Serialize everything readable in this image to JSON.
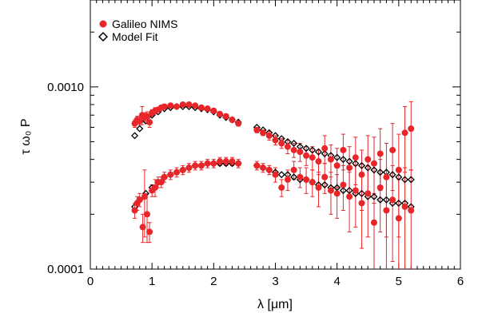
{
  "chart_data": {
    "type": "scatter",
    "title": "",
    "xlabel": "λ [μm]",
    "ylabel": "τ ω₀ P",
    "xlim": [
      0,
      6
    ],
    "ylim": [
      0.0001,
      0.003
    ],
    "yscale": "log",
    "x_ticks": [
      0,
      1,
      2,
      3,
      4,
      5,
      6
    ],
    "x_tick_labels": [
      "0",
      "1",
      "2",
      "3",
      "4",
      "5",
      "6"
    ],
    "y_ticks": [
      0.0001,
      0.001
    ],
    "y_tick_labels": [
      "0.0001",
      "0.0010"
    ],
    "legend_position": "top-left",
    "grid": false,
    "colors": {
      "observed": "#e8262a",
      "model": "#000000"
    },
    "series": [
      {
        "name": "Galileo NIMS",
        "marker": "filled-circle",
        "components": [
          {
            "x": [
              0.72,
              0.76,
              0.8,
              0.84,
              0.88,
              0.92,
              0.96,
              1.0,
              1.05,
              1.1,
              1.15,
              1.2,
              1.3,
              1.4,
              1.5,
              1.6,
              1.7,
              1.8,
              1.9,
              2.0,
              2.1,
              2.2,
              2.3,
              2.4
            ],
            "y": [
              0.00063,
              0.00066,
              0.00065,
              0.0007,
              0.00068,
              0.00069,
              0.00064,
              0.00072,
              0.00074,
              0.00075,
              0.00077,
              0.00078,
              0.00079,
              0.00078,
              0.0008,
              0.0008,
              0.00079,
              0.00077,
              0.00076,
              0.00074,
              0.00071,
              0.00069,
              0.00066,
              0.00063
            ],
            "yerr": [
              3e-05,
              3e-05,
              3e-05,
              8e-05,
              4e-05,
              4e-05,
              4e-05,
              3e-05,
              3e-05,
              2e-05,
              2e-05,
              2e-05,
              2e-05,
              2e-05,
              2e-05,
              2e-05,
              2e-05,
              2e-05,
              2e-05,
              2e-05,
              2e-05,
              2e-05,
              2e-05,
              2e-05
            ]
          },
          {
            "x": [
              0.72,
              0.76,
              0.8,
              0.85,
              0.88,
              0.92,
              0.96,
              1.0,
              1.05,
              1.1,
              1.15,
              1.2,
              1.3,
              1.4,
              1.5,
              1.6,
              1.7,
              1.8,
              1.9,
              2.0,
              2.1,
              2.2,
              2.3,
              2.4
            ],
            "y": [
              0.00021,
              0.00023,
              0.00024,
              0.00017,
              0.00025,
              0.0002,
              0.00016,
              0.00027,
              0.00028,
              0.0003,
              0.0003,
              0.00032,
              0.00033,
              0.00034,
              0.00035,
              0.00036,
              0.00037,
              0.00037,
              0.00038,
              0.00038,
              0.00039,
              0.00039,
              0.00039,
              0.00038
            ],
            "yerr": [
              2e-05,
              2e-05,
              2e-05,
              3e-05,
              0.0001,
              6e-05,
              2e-05,
              2e-05,
              3e-05,
              2e-05,
              2e-05,
              2e-05,
              2e-05,
              2e-05,
              2e-05,
              2e-05,
              2e-05,
              2e-05,
              2e-05,
              2e-05,
              2e-05,
              2e-05,
              2e-05,
              2e-05
            ]
          },
          {
            "x": [
              2.7,
              2.8,
              2.9,
              3.0,
              3.1,
              3.2,
              3.3,
              3.4,
              3.5,
              3.6,
              3.7,
              3.8,
              3.9,
              4.0,
              4.1,
              4.2,
              4.3,
              4.4,
              4.5,
              4.6,
              4.7,
              4.8,
              4.9,
              5.0,
              5.1,
              5.2
            ],
            "y": [
              0.00058,
              0.00056,
              0.00054,
              0.00051,
              0.00049,
              0.00047,
              0.00045,
              0.00044,
              0.00042,
              0.00041,
              0.00039,
              0.00046,
              0.0004,
              0.00037,
              0.00045,
              0.00036,
              0.00041,
              0.00033,
              0.0004,
              0.00038,
              0.00043,
              0.00032,
              0.00045,
              0.00035,
              0.00056,
              0.00059
            ],
            "yerr": [
              2e-05,
              2e-05,
              3e-05,
              3e-05,
              3e-05,
              4e-05,
              4e-05,
              5e-05,
              5e-05,
              6e-05,
              6e-05,
              8e-05,
              8e-05,
              9e-05,
              0.0001,
              0.00011,
              0.00012,
              0.00012,
              0.00014,
              0.00015,
              0.00016,
              0.00017,
              0.00018,
              0.0002,
              0.00022,
              0.00024
            ]
          },
          {
            "x": [
              2.7,
              2.8,
              2.9,
              3.0,
              3.1,
              3.2,
              3.3,
              3.4,
              3.5,
              3.6,
              3.7,
              3.8,
              3.9,
              4.0,
              4.1,
              4.2,
              4.3,
              4.4,
              4.5,
              4.6,
              4.7,
              4.8,
              4.9,
              5.0,
              5.1,
              5.2
            ],
            "y": [
              0.00037,
              0.00036,
              0.00035,
              0.00033,
              0.00028,
              0.00031,
              0.00035,
              0.00032,
              0.00031,
              0.0003,
              0.00028,
              0.00032,
              0.00027,
              0.00026,
              0.00029,
              0.00025,
              0.00027,
              0.00023,
              0.00026,
              0.00018,
              0.00028,
              0.00021,
              0.00024,
              0.00019,
              0.00022,
              0.00021
            ],
            "yerr": [
              2e-05,
              2e-05,
              2e-05,
              3e-05,
              3e-05,
              4e-05,
              4e-05,
              4e-05,
              5e-05,
              5e-05,
              6e-05,
              6e-05,
              7e-05,
              7e-05,
              8e-05,
              9e-05,
              0.0001,
              0.0001,
              0.00011,
              8e-05,
              0.00012,
              0.00012,
              0.00013,
              0.00012,
              0.00014,
              0.00014
            ]
          }
        ]
      },
      {
        "name": "Model Fit",
        "marker": "open-diamond",
        "components": [
          {
            "x": [
              0.72,
              0.8,
              0.9,
              1.0,
              1.1,
              1.2,
              1.3,
              1.4,
              1.5,
              1.6,
              1.7,
              1.8,
              1.9,
              2.0,
              2.1,
              2.2,
              2.3,
              2.4
            ],
            "y": [
              0.00054,
              0.00059,
              0.00065,
              0.0007,
              0.00073,
              0.00076,
              0.00077,
              0.00078,
              0.00078,
              0.00078,
              0.00077,
              0.00076,
              0.00075,
              0.00073,
              0.0007,
              0.00068,
              0.00066,
              0.00064
            ]
          },
          {
            "x": [
              0.72,
              0.8,
              0.9,
              1.0,
              1.1,
              1.2,
              1.3,
              1.4,
              1.5,
              1.6,
              1.7,
              1.8,
              1.9,
              2.0,
              2.1,
              2.2,
              2.3,
              2.4
            ],
            "y": [
              0.00022,
              0.00024,
              0.00026,
              0.00028,
              0.0003,
              0.00032,
              0.00033,
              0.00034,
              0.00035,
              0.00036,
              0.00037,
              0.00037,
              0.00038,
              0.00038,
              0.00038,
              0.00038,
              0.00038,
              0.00038
            ]
          },
          {
            "x": [
              2.7,
              2.8,
              2.9,
              3.0,
              3.1,
              3.2,
              3.3,
              3.4,
              3.5,
              3.6,
              3.7,
              3.8,
              3.9,
              4.0,
              4.1,
              4.2,
              4.3,
              4.4,
              4.5,
              4.6,
              4.7,
              4.8,
              4.9,
              5.0,
              5.1,
              5.2
            ],
            "y": [
              0.0006,
              0.00058,
              0.00056,
              0.00054,
              0.00052,
              0.0005,
              0.00049,
              0.00047,
              0.00046,
              0.00045,
              0.00044,
              0.00043,
              0.00042,
              0.00041,
              0.0004,
              0.00039,
              0.00038,
              0.00037,
              0.00036,
              0.00035,
              0.00034,
              0.00034,
              0.00033,
              0.00032,
              0.00031,
              0.00031
            ]
          },
          {
            "x": [
              2.7,
              2.8,
              2.9,
              3.0,
              3.1,
              3.2,
              3.3,
              3.4,
              3.5,
              3.6,
              3.7,
              3.8,
              3.9,
              4.0,
              4.1,
              4.2,
              4.3,
              4.4,
              4.5,
              4.6,
              4.7,
              4.8,
              4.9,
              5.0,
              5.1,
              5.2
            ],
            "y": [
              0.00037,
              0.00036,
              0.00035,
              0.00034,
              0.00033,
              0.00033,
              0.00032,
              0.00031,
              0.00031,
              0.0003,
              0.00029,
              0.00029,
              0.00028,
              0.00028,
              0.00027,
              0.00027,
              0.00026,
              0.00026,
              0.00025,
              0.00025,
              0.00024,
              0.00024,
              0.00023,
              0.00023,
              0.00023,
              0.00022
            ]
          }
        ]
      }
    ]
  }
}
